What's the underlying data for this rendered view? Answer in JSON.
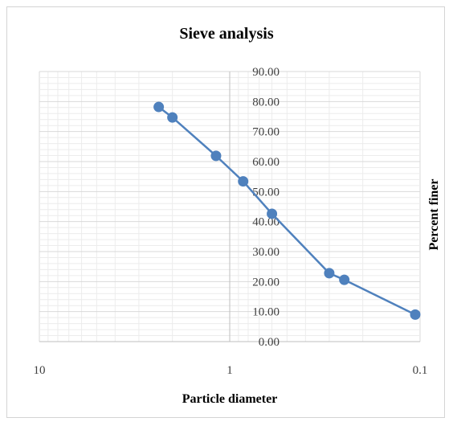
{
  "chart_data": {
    "type": "scatter",
    "title": "Sieve analysis",
    "xlabel": "Particle diameter",
    "ylabel": "Percent finer",
    "x_scale": "log",
    "x_reversed": true,
    "xlim": [
      10,
      0.1
    ],
    "ylim": [
      0,
      90
    ],
    "y_major_step": 10,
    "x_ticks": [
      "10",
      "1",
      "0.1"
    ],
    "y_ticks": [
      "0.00",
      "10.00",
      "20.00",
      "30.00",
      "40.00",
      "50.00",
      "60.00",
      "70.00",
      "80.00",
      "90.00"
    ],
    "grid": true,
    "legend": "none",
    "series": [
      {
        "color": "#4f81bd",
        "x": [
          2.36,
          2.0,
          1.18,
          0.85,
          0.6,
          0.3,
          0.25,
          0.106
        ],
        "y": [
          78.2,
          74.7,
          61.9,
          53.4,
          42.6,
          22.8,
          20.6,
          9.0
        ]
      }
    ]
  }
}
